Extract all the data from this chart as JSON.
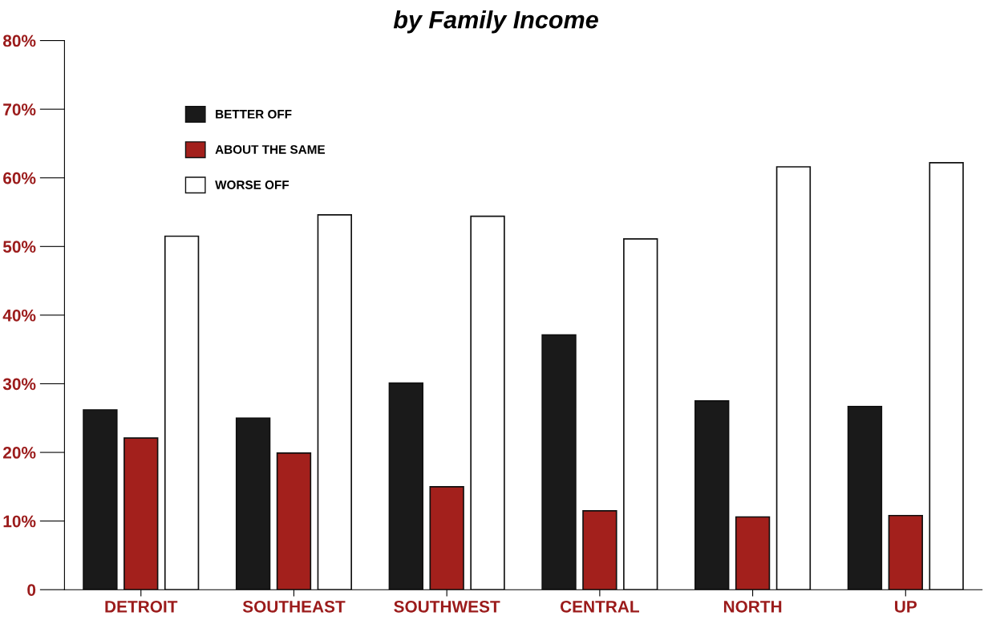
{
  "chart_data": {
    "type": "bar",
    "subtitle": "by Family Income",
    "categories": [
      "DETROIT",
      "SOUTHEAST",
      "SOUTHWEST",
      "CENTRAL",
      "NORTH",
      "UP"
    ],
    "series": [
      {
        "name": "BETTER OFF",
        "color": "#1a1a1a",
        "values": [
          26.2,
          25.0,
          30.1,
          37.1,
          27.5,
          26.7
        ]
      },
      {
        "name": "ABOUT THE SAME",
        "color": "#a3201c",
        "values": [
          22.1,
          19.9,
          15.0,
          11.5,
          10.6,
          10.8
        ]
      },
      {
        "name": "WORSE OFF",
        "color": "#ffffff",
        "values": [
          51.5,
          54.6,
          54.4,
          51.1,
          61.6,
          62.2
        ]
      }
    ],
    "ylim": [
      0,
      80
    ],
    "yticks": [
      {
        "value": 0,
        "label": "0"
      },
      {
        "value": 10,
        "label": "10%"
      },
      {
        "value": 20,
        "label": "20%"
      },
      {
        "value": 30,
        "label": "30%"
      },
      {
        "value": 40,
        "label": "40%"
      },
      {
        "value": 50,
        "label": "50%"
      },
      {
        "value": 60,
        "label": "60%"
      },
      {
        "value": 70,
        "label": "70%"
      },
      {
        "value": 80,
        "label": "80%"
      }
    ],
    "grid": false,
    "legend": "top left"
  }
}
